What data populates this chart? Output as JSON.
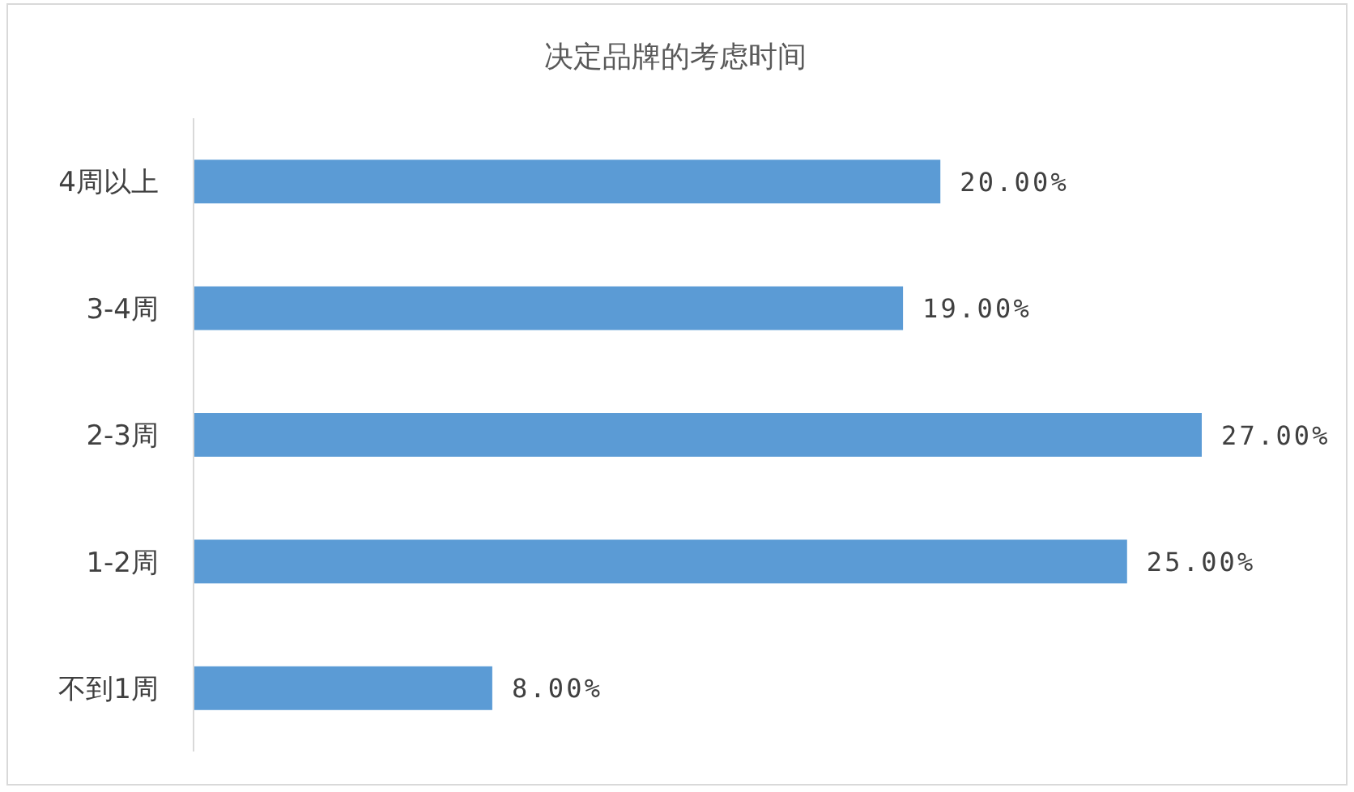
{
  "chart_data": {
    "type": "bar",
    "orientation": "horizontal",
    "title": "决定品牌的考虑时间",
    "categories": [
      "4周以上",
      "3-4周",
      "2-3周",
      "1-2周",
      "不到1周"
    ],
    "values": [
      20,
      19,
      27,
      25,
      8
    ],
    "value_labels": [
      "20.00%",
      "19.00%",
      "27.00%",
      "25.00%",
      "8.00%"
    ],
    "color": "#5b9bd5"
  }
}
